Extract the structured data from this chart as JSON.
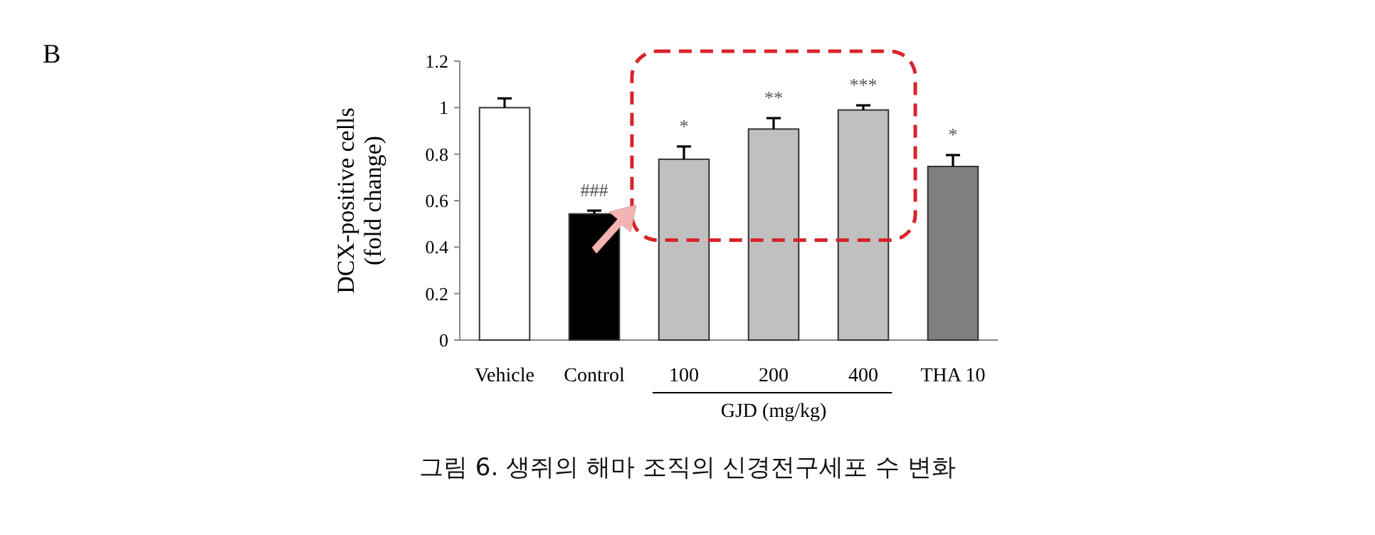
{
  "chart_data": {
    "type": "bar",
    "ylabel": "DCX-positive cells (fold change)",
    "categories": [
      "Vehicle",
      "Control",
      "100",
      "200",
      "400",
      "THA 10"
    ],
    "values": [
      1.0,
      0.543,
      0.778,
      0.908,
      0.99,
      0.747
    ],
    "colors": [
      "#ffffff",
      "#000000",
      "#c0c0c0",
      "#c0c0c0",
      "#c0c0c0",
      "#7f7f7f"
    ],
    "errors": [
      [
        1.0,
        1.04
      ],
      [
        0.543,
        0.557
      ],
      [
        0.778,
        0.833
      ],
      [
        0.908,
        0.955
      ],
      [
        0.99,
        1.01
      ],
      [
        0.747,
        0.796
      ]
    ],
    "ylim": [
      0,
      1.2
    ],
    "yticks": [
      0,
      0.2,
      0.4,
      0.6,
      0.8,
      1,
      1.2
    ],
    "annotations": [
      "B",
      "GJD (mg/kg)",
      "그림 6. 생쥐의 해마 조직의 신경전구세포 수 변화",
      {
        "text": "###",
        "x": "Control",
        "y": 0.557
      },
      {
        "text": "*",
        "x": "100",
        "y": 0.833
      },
      {
        "text": "**",
        "x": "200",
        "y": 0.955
      },
      {
        "text": "***",
        "x": "400",
        "y": 1.01
      },
      {
        "text": "*",
        "x": "THA 10",
        "y": 0.796
      }
    ]
  }
}
